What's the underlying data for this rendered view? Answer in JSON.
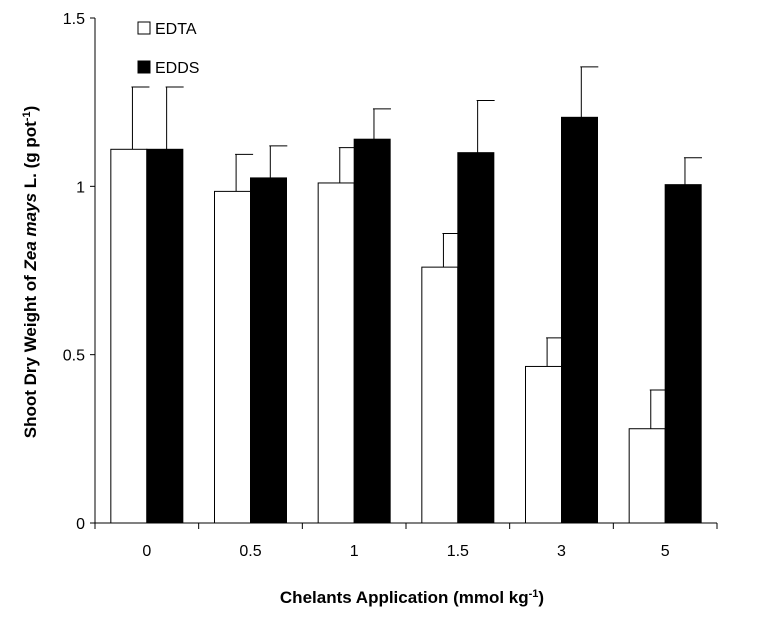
{
  "chart_data": {
    "type": "bar",
    "categories": [
      "0",
      "0.5",
      "1",
      "1.5",
      "3",
      "5"
    ],
    "series": [
      {
        "name": "EDTA",
        "values": [
          1.11,
          0.985,
          1.01,
          0.76,
          0.465,
          0.28
        ],
        "errors": [
          0.185,
          0.11,
          0.105,
          0.1,
          0.085,
          0.115
        ],
        "color": "#ffffff"
      },
      {
        "name": "EDDS",
        "values": [
          1.11,
          1.025,
          1.14,
          1.1,
          1.205,
          1.005
        ],
        "errors": [
          0.185,
          0.095,
          0.09,
          0.155,
          0.15,
          0.08
        ],
        "color": "#000000"
      }
    ],
    "ylim": [
      0,
      1.5
    ],
    "yticks": [
      "0",
      "0.5",
      "1",
      "1.5"
    ],
    "xlabel": {
      "prefix": "Chelants Application (",
      "unit": "mmol kg",
      "sup": "-1",
      "suffix": ")"
    },
    "ylabel": {
      "prefix": "Shoot Dry Weight of ",
      "species": "Zea mays",
      "mid": " L. (g pot",
      "sup": "-1",
      "suffix": ")"
    },
    "legend": {
      "position": "top-left"
    },
    "grid": false
  }
}
